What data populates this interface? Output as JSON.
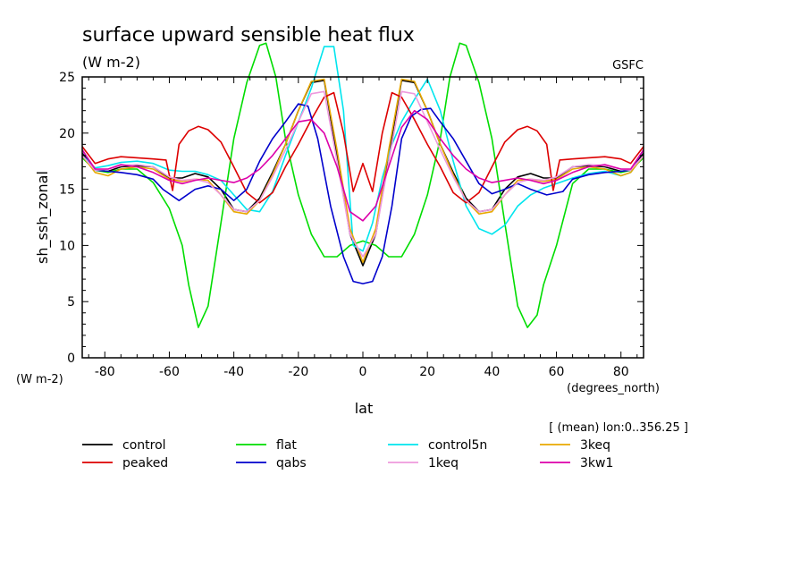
{
  "chart_data": {
    "type": "line",
    "title": "surface upward sensible heat flux",
    "units": "(W m-2)",
    "institution": "GSFC",
    "ylabel": "sh_ssh_zonal",
    "yunits": "(W m-2)",
    "xlabel": "lat",
    "xunits": "(degrees_north)",
    "annotation": "[ (mean) lon:0..356.25 ]",
    "xlim": [
      -87,
      87
    ],
    "ylim": [
      0,
      25
    ],
    "xticks": [
      -80,
      -60,
      -40,
      -20,
      0,
      20,
      40,
      60,
      80
    ],
    "yticks": [
      0,
      5,
      10,
      15,
      20,
      25
    ],
    "series": [
      {
        "name": "control",
        "color": "#000000",
        "x": [
          -87,
          -83,
          -79,
          -75,
          -70,
          -65,
          -60,
          -56,
          -52,
          -48,
          -44,
          -40,
          -36,
          -32,
          -28,
          -24,
          -20,
          -16,
          -12,
          -8,
          -4,
          0,
          4,
          8,
          12,
          16,
          20,
          24,
          28,
          32,
          36,
          40,
          44,
          48,
          52,
          56,
          60,
          65,
          70,
          75,
          80,
          83,
          87
        ],
        "y": [
          18.2,
          16.7,
          16.6,
          17.0,
          17.1,
          17.0,
          16.0,
          16.0,
          16.4,
          16.1,
          15.0,
          13.2,
          13.0,
          14.2,
          16.5,
          19.0,
          22.0,
          24.5,
          24.7,
          18.0,
          11.0,
          8.2,
          11.0,
          18.0,
          24.7,
          24.5,
          22.0,
          19.0,
          16.5,
          14.2,
          13.0,
          13.2,
          15.0,
          16.1,
          16.4,
          16.0,
          16.0,
          17.0,
          17.1,
          17.0,
          16.6,
          16.7,
          18.2
        ]
      },
      {
        "name": "flat",
        "color": "#00dd00",
        "x": [
          -87,
          -83,
          -79,
          -75,
          -70,
          -65,
          -60,
          -56,
          -54,
          -51,
          -48,
          -44,
          -40,
          -36,
          -32,
          -30,
          -27,
          -24,
          -20,
          -16,
          -12,
          -8,
          -4,
          0,
          4,
          8,
          12,
          16,
          20,
          24,
          27,
          30,
          32,
          36,
          40,
          44,
          48,
          51,
          54,
          56,
          60,
          65,
          70,
          75,
          80,
          83,
          87
        ],
        "y": [
          17.8,
          16.7,
          16.5,
          16.8,
          16.8,
          15.6,
          13.3,
          10.0,
          6.5,
          2.7,
          4.6,
          12.0,
          19.5,
          24.5,
          27.8,
          28.0,
          25.0,
          19.5,
          14.5,
          11.0,
          9.0,
          9.0,
          10.0,
          10.4,
          10.0,
          9.0,
          9.0,
          11.0,
          14.5,
          19.5,
          25.0,
          28.0,
          27.8,
          24.5,
          19.5,
          12.0,
          4.6,
          2.7,
          3.8,
          6.5,
          10.0,
          15.5,
          16.8,
          16.8,
          16.5,
          16.7,
          17.8
        ]
      },
      {
        "name": "control5n",
        "color": "#00e5ee",
        "x": [
          -87,
          -83,
          -79,
          -75,
          -70,
          -65,
          -60,
          -56,
          -52,
          -48,
          -44,
          -40,
          -36,
          -32,
          -28,
          -24,
          -20,
          -16,
          -12,
          -9,
          -6,
          -3,
          0,
          3,
          6,
          9,
          12,
          16,
          20,
          24,
          28,
          32,
          36,
          40,
          44,
          48,
          52,
          56,
          60,
          65,
          70,
          75,
          80,
          83,
          87
        ],
        "y": [
          18.0,
          16.9,
          17.1,
          17.4,
          17.5,
          17.3,
          16.7,
          16.6,
          16.6,
          16.3,
          15.8,
          14.5,
          13.2,
          13.0,
          14.8,
          18.0,
          21.0,
          24.0,
          27.7,
          27.7,
          22.0,
          10.0,
          9.5,
          12.0,
          16.0,
          19.0,
          21.0,
          23.0,
          24.8,
          22.0,
          17.5,
          13.5,
          11.5,
          11.0,
          11.8,
          13.5,
          14.5,
          15.1,
          15.5,
          16.0,
          16.4,
          16.6,
          16.2,
          16.5,
          18.0
        ]
      },
      {
        "name": "3keq",
        "color": "#e8a800",
        "x": [
          -87,
          -83,
          -79,
          -75,
          -70,
          -65,
          -60,
          -56,
          -52,
          -48,
          -44,
          -40,
          -36,
          -32,
          -28,
          -24,
          -20,
          -16,
          -12,
          -8,
          -4,
          0,
          4,
          8,
          12,
          16,
          20,
          24,
          28,
          32,
          36,
          40,
          44,
          48,
          52,
          56,
          60,
          65,
          70,
          75,
          80,
          83,
          87
        ],
        "y": [
          18.0,
          16.5,
          16.2,
          16.8,
          17.0,
          16.8,
          15.9,
          15.7,
          15.9,
          15.8,
          14.5,
          13.0,
          12.8,
          14.0,
          16.3,
          19.0,
          22.0,
          24.6,
          24.8,
          18.5,
          11.5,
          8.5,
          11.5,
          18.5,
          24.8,
          24.6,
          22.0,
          19.0,
          16.3,
          14.0,
          12.8,
          13.0,
          14.5,
          15.8,
          15.9,
          15.7,
          15.9,
          16.8,
          17.0,
          16.8,
          16.2,
          16.5,
          18.0
        ]
      },
      {
        "name": "peaked",
        "color": "#dd0000",
        "x": [
          -87,
          -83,
          -79,
          -75,
          -70,
          -65,
          -61,
          -59,
          -57,
          -54,
          -51,
          -48,
          -44,
          -40,
          -36,
          -32,
          -28,
          -24,
          -20,
          -16,
          -12,
          -9,
          -6,
          -3,
          0,
          3,
          6,
          9,
          12,
          16,
          20,
          24,
          28,
          32,
          36,
          40,
          44,
          48,
          51,
          54,
          57,
          59,
          61,
          65,
          70,
          75,
          80,
          83,
          87
        ],
        "y": [
          18.8,
          17.3,
          17.7,
          17.9,
          17.8,
          17.7,
          17.6,
          14.9,
          19.0,
          20.2,
          20.6,
          20.3,
          19.2,
          17.0,
          14.7,
          13.8,
          14.7,
          17.0,
          19.0,
          21.2,
          23.2,
          23.6,
          20.0,
          14.8,
          17.3,
          14.8,
          20.0,
          23.6,
          23.2,
          21.2,
          19.0,
          17.0,
          14.7,
          13.8,
          14.7,
          17.0,
          19.2,
          20.3,
          20.6,
          20.2,
          19.0,
          14.9,
          17.6,
          17.7,
          17.8,
          17.9,
          17.7,
          17.3,
          18.8
        ]
      },
      {
        "name": "qabs",
        "color": "#0000cc",
        "x": [
          -87,
          -83,
          -79,
          -75,
          -70,
          -65,
          -62,
          -57,
          -52,
          -48,
          -44,
          -40,
          -36,
          -32,
          -28,
          -24,
          -20,
          -17,
          -14,
          -10,
          -6,
          -3,
          0,
          3,
          6,
          9,
          12,
          15,
          18,
          21,
          24,
          28,
          32,
          36,
          40,
          44,
          48,
          52,
          57,
          62,
          65,
          70,
          75,
          80,
          83,
          87
        ],
        "y": [
          18.5,
          16.7,
          16.6,
          16.5,
          16.3,
          15.9,
          15.0,
          14.0,
          15.0,
          15.3,
          15.0,
          14.0,
          15.0,
          17.5,
          19.5,
          21.0,
          22.6,
          22.4,
          19.5,
          13.5,
          9.0,
          6.8,
          6.6,
          6.8,
          9.0,
          13.5,
          19.5,
          21.5,
          22.1,
          22.2,
          21.0,
          19.5,
          17.5,
          15.5,
          14.6,
          15.0,
          15.5,
          15.0,
          14.5,
          14.8,
          15.9,
          16.3,
          16.5,
          16.6,
          16.7,
          18.5
        ]
      },
      {
        "name": "1keq",
        "color": "#ee99dd",
        "x": [
          -87,
          -83,
          -79,
          -75,
          -70,
          -65,
          -60,
          -56,
          -52,
          -48,
          -44,
          -40,
          -36,
          -32,
          -28,
          -24,
          -20,
          -16,
          -12,
          -8,
          -4,
          0,
          4,
          8,
          12,
          16,
          20,
          24,
          28,
          32,
          36,
          40,
          44,
          48,
          52,
          56,
          60,
          65,
          70,
          75,
          80,
          83,
          87
        ],
        "y": [
          18.0,
          16.7,
          16.8,
          17.1,
          17.2,
          17.0,
          16.1,
          15.8,
          15.9,
          15.6,
          14.5,
          13.2,
          13.0,
          14.0,
          16.1,
          18.5,
          21.0,
          23.5,
          23.7,
          17.5,
          11.0,
          9.0,
          11.0,
          17.5,
          23.7,
          23.5,
          21.0,
          18.5,
          16.1,
          14.0,
          13.0,
          13.2,
          14.5,
          15.6,
          15.9,
          15.8,
          16.1,
          17.0,
          17.2,
          17.1,
          16.8,
          16.7,
          18.0
        ]
      },
      {
        "name": "3kw1",
        "color": "#dd00aa",
        "x": [
          -87,
          -83,
          -79,
          -75,
          -70,
          -65,
          -60,
          -56,
          -52,
          -48,
          -44,
          -40,
          -36,
          -32,
          -28,
          -24,
          -20,
          -16,
          -12,
          -8,
          -4,
          0,
          4,
          8,
          12,
          16,
          20,
          24,
          28,
          32,
          36,
          40,
          44,
          48,
          52,
          56,
          60,
          65,
          70,
          75,
          80,
          83,
          87
        ],
        "y": [
          18.5,
          16.8,
          16.8,
          17.2,
          17.0,
          16.5,
          15.8,
          15.5,
          15.8,
          16.0,
          15.8,
          15.6,
          16.0,
          16.8,
          18.0,
          19.5,
          21.0,
          21.2,
          20.0,
          17.0,
          13.0,
          12.2,
          13.5,
          17.0,
          20.5,
          22.0,
          21.2,
          19.5,
          18.0,
          16.8,
          16.0,
          15.6,
          15.8,
          16.0,
          15.8,
          15.5,
          15.8,
          16.5,
          17.0,
          17.2,
          16.8,
          16.8,
          18.5
        ]
      }
    ],
    "legend": [
      {
        "name": "control",
        "color": "#000000"
      },
      {
        "name": "flat",
        "color": "#00dd00"
      },
      {
        "name": "control5n",
        "color": "#00e5ee"
      },
      {
        "name": "3keq",
        "color": "#e8a800"
      },
      {
        "name": "peaked",
        "color": "#dd0000"
      },
      {
        "name": "qabs",
        "color": "#0000cc"
      },
      {
        "name": "1keq",
        "color": "#ee99dd"
      },
      {
        "name": "3kw1",
        "color": "#dd00aa"
      }
    ]
  }
}
